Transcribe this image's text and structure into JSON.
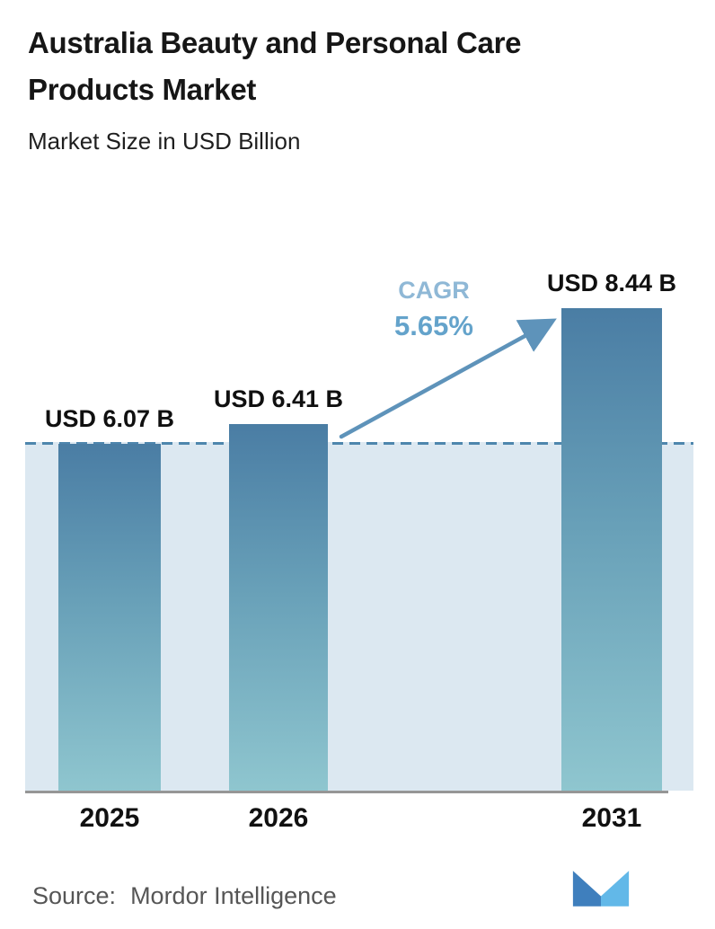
{
  "header": {
    "title_line1": "Australia Beauty and Personal Care",
    "title_line2": "Products Market",
    "subtitle": "Market Size in USD Billion"
  },
  "chart_data": {
    "type": "bar",
    "title": "Australia Beauty and Personal Care Products Market",
    "subtitle": "Market Size in USD Billion",
    "categories": [
      "2025",
      "2026",
      "2031"
    ],
    "values": [
      6.07,
      6.41,
      8.44
    ],
    "bar_labels": [
      "USD 6.07 B",
      "USD 6.41 B",
      "USD 8.44 B"
    ],
    "unit": "USD Billion",
    "xlabel": "",
    "ylabel": "",
    "ylim": [
      0,
      9.9
    ],
    "grid": false,
    "legend_position": "none",
    "annotations": {
      "cagr_label": "CAGR",
      "cagr_value": "5.65%",
      "reference_line_value": 6.07,
      "reference_line_style": "dashed"
    },
    "colors": {
      "bar_gradient_top": "#4a7da4",
      "bar_gradient_bottom": "#8fc6cf",
      "reference_band_fill": "#dce8f1",
      "dashed_line": "#4e86ad",
      "arrow": "#5e93ba",
      "cagr_label_text": "#8fb8d6",
      "cagr_value_text": "#64a3cb"
    }
  },
  "footer": {
    "source_label": "Source:",
    "source_name": "Mordor Intelligence",
    "logo_name": "mordor-intelligence-logo"
  }
}
